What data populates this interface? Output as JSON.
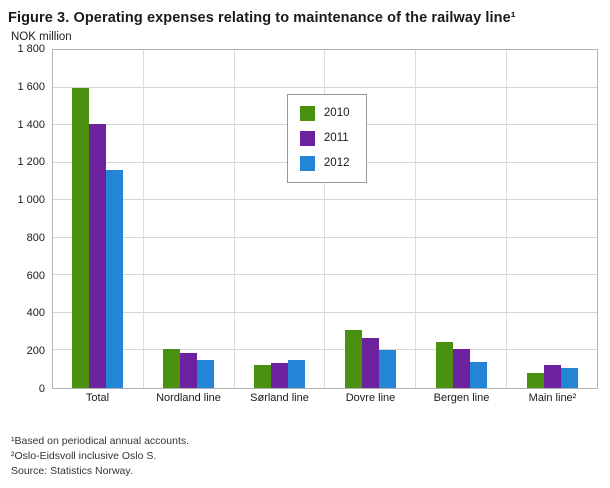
{
  "title": "Figure 3.  Operating expenses relating to maintenance of the railway line¹",
  "subtitle": "NOK million",
  "footnotes": [
    "¹Based on periodical annual accounts.",
    "²Oslo-Eidsvoll inclusive Oslo S.",
    "Source: Statistics Norway."
  ],
  "chart_data": {
    "type": "bar",
    "categories": [
      "Total",
      "Nordland line",
      "Sørland line",
      "Dovre line",
      "Bergen line",
      "Main line²"
    ],
    "series": [
      {
        "name": "2010",
        "color": "#4a9110",
        "values": [
          1600,
          210,
          120,
          310,
          245,
          80
        ]
      },
      {
        "name": "2011",
        "color": "#6c219e",
        "values": [
          1405,
          185,
          135,
          265,
          210,
          125
        ]
      },
      {
        "name": "2012",
        "color": "#2484d6",
        "values": [
          1160,
          150,
          150,
          205,
          140,
          105
        ]
      }
    ],
    "ylim": [
      0,
      1800
    ],
    "ytick_step": 200,
    "ytick_labels": [
      "0",
      "200",
      "400",
      "600",
      "800",
      "1 000",
      "1 200",
      "1 400",
      "1 600",
      "1 800"
    ],
    "grid": "horizontal",
    "legend_position": "upper-center"
  }
}
